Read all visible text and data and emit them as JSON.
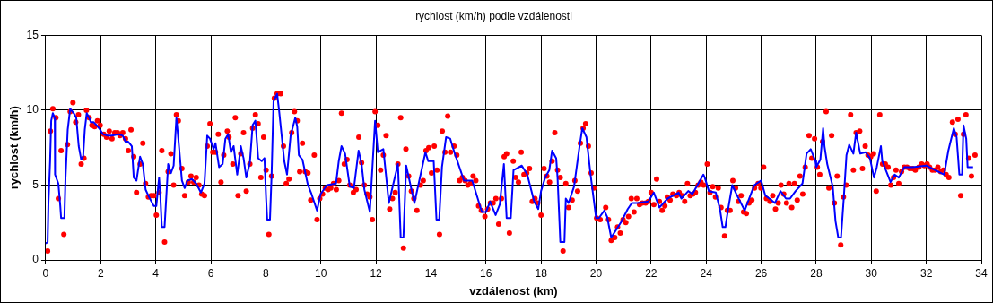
{
  "chart_data": {
    "type": "line",
    "title": "rychlost (km/h) podle vzdálenosti",
    "xlabel": "vzdálenost (km)",
    "ylabel": "rychlost (km/h)",
    "xlim": [
      0,
      34
    ],
    "xticks": [
      0,
      2,
      4,
      6,
      8,
      10,
      12,
      14,
      16,
      18,
      20,
      22,
      24,
      26,
      28,
      30,
      32,
      34
    ],
    "ylim": [
      0,
      15
    ],
    "yticks": [
      0,
      5,
      10,
      15
    ],
    "grid": true,
    "legend": false,
    "series": [
      {
        "type": "scatter",
        "marker": "circle",
        "color": "#ff0000",
        "x": [
          0.07,
          0.17,
          0.26,
          0.37,
          0.46,
          0.56,
          0.66,
          0.79,
          0.89,
          0.99,
          1.09,
          1.19,
          1.29,
          1.39,
          1.48,
          1.58,
          1.68,
          1.78,
          1.88,
          1.98,
          2.11,
          2.21,
          2.31,
          2.41,
          2.51,
          2.61,
          2.7,
          2.8,
          2.9,
          3.0,
          3.1,
          3.2,
          3.3,
          3.43,
          3.53,
          3.63,
          3.73,
          3.83,
          3.93,
          4.02,
          4.12,
          4.22,
          4.32,
          4.45,
          4.55,
          4.65,
          4.75,
          4.82,
          4.95,
          5.05,
          5.18,
          5.28,
          5.38,
          5.47,
          5.57,
          5.67,
          5.77,
          5.87,
          5.97,
          6.07,
          6.17,
          6.27,
          6.37,
          6.47,
          6.6,
          6.66,
          6.8,
          6.89,
          6.99,
          7.09,
          7.19,
          7.29,
          7.42,
          7.52,
          7.62,
          7.72,
          7.82,
          7.92,
          8.01,
          8.11,
          8.21,
          8.31,
          8.41,
          8.54,
          8.64,
          8.74,
          8.84,
          8.94,
          9.04,
          9.14,
          9.23,
          9.33,
          9.43,
          9.53,
          9.63,
          9.76,
          9.86,
          9.96,
          10.06,
          10.16,
          10.26,
          10.36,
          10.46,
          10.56,
          10.65,
          10.75,
          10.85,
          10.95,
          11.05,
          11.18,
          11.28,
          11.38,
          11.48,
          11.58,
          11.68,
          11.78,
          11.87,
          11.97,
          12.07,
          12.17,
          12.27,
          12.37,
          12.5,
          12.6,
          12.7,
          12.8,
          12.9,
          13.0,
          13.09,
          13.19,
          13.29,
          13.38,
          13.49,
          13.62,
          13.72,
          13.82,
          13.92,
          14.02,
          14.12,
          14.22,
          14.31,
          14.41,
          14.51,
          14.61,
          14.71,
          14.84,
          14.94,
          15.04,
          15.14,
          15.24,
          15.34,
          15.44,
          15.53,
          15.63,
          15.73,
          15.83,
          15.96,
          16.06,
          16.16,
          16.26,
          16.36,
          16.46,
          16.56,
          16.66,
          16.75,
          16.85,
          16.99,
          17.08,
          17.18,
          17.28,
          17.38,
          17.48,
          17.58,
          17.68,
          17.78,
          17.88,
          18.0,
          18.11,
          18.21,
          18.31,
          18.4,
          18.5,
          18.6,
          18.7,
          18.8,
          18.9,
          19.0,
          19.13,
          19.23,
          19.33,
          19.43,
          19.53,
          19.62,
          19.72,
          19.82,
          19.92,
          20.02,
          20.15,
          20.35,
          20.45,
          20.55,
          20.68,
          20.78,
          20.88,
          20.98,
          21.08,
          21.18,
          21.28,
          21.38,
          21.48,
          21.58,
          21.68,
          21.8,
          21.9,
          22.0,
          22.1,
          22.2,
          22.3,
          22.4,
          22.5,
          22.59,
          22.69,
          22.79,
          22.92,
          23.02,
          23.12,
          23.22,
          23.32,
          23.42,
          23.52,
          23.61,
          23.71,
          23.81,
          23.91,
          24.04,
          24.14,
          24.24,
          24.34,
          24.44,
          24.54,
          24.67,
          24.77,
          24.87,
          24.97,
          25.07,
          25.17,
          25.27,
          25.36,
          25.46,
          25.56,
          25.66,
          25.76,
          25.89,
          25.99,
          26.09,
          26.19,
          26.32,
          26.42,
          26.52,
          26.62,
          26.72,
          26.82,
          26.92,
          27.01,
          27.11,
          27.21,
          27.31,
          27.41,
          27.51,
          27.6,
          27.74,
          27.84,
          27.94,
          28.04,
          28.13,
          28.23,
          28.36,
          28.46,
          28.56,
          28.66,
          28.76,
          28.89,
          28.99,
          29.09,
          29.25,
          29.35,
          29.45,
          29.58,
          29.68,
          29.78,
          29.88,
          29.98,
          30.08,
          30.18,
          30.31,
          30.41,
          30.51,
          30.61,
          30.71,
          30.81,
          30.9,
          31.0,
          31.1,
          31.2,
          31.3,
          31.4,
          31.5,
          31.6,
          31.73,
          31.83,
          31.93,
          32.03,
          32.12,
          32.22,
          32.32,
          32.42,
          32.52,
          32.62,
          32.72,
          32.82,
          32.95,
          33.05,
          33.15,
          33.25,
          33.35,
          33.44,
          33.54,
          33.64,
          33.77
        ],
        "values": [
          0.6,
          8.6,
          10.1,
          9.5,
          4.1,
          7.3,
          1.7,
          7.7,
          9.9,
          10.5,
          9.2,
          9.7,
          6.4,
          6.8,
          10.0,
          9.5,
          9.0,
          8.9,
          9.3,
          9.0,
          8.4,
          8.2,
          8.6,
          8.1,
          8.5,
          8.5,
          8.3,
          8.5,
          8.1,
          7.3,
          8.7,
          6.9,
          4.5,
          6.4,
          7.8,
          5.1,
          4.2,
          4.3,
          4.3,
          3.0,
          4.5,
          7.3,
          1.2,
          5.9,
          7.1,
          5.0,
          9.7,
          9.3,
          6.1,
          4.3,
          5.2,
          5.6,
          5.2,
          5.5,
          5.0,
          4.4,
          4.3,
          7.6,
          9.1,
          7.2,
          7.2,
          8.4,
          5.2,
          7.0,
          8.6,
          8.2,
          6.4,
          9.5,
          4.3,
          7.1,
          8.5,
          4.6,
          6.4,
          8.8,
          9.7,
          9.1,
          5.5,
          8.2,
          6.0,
          1.7,
          5.6,
          10.8,
          11.1,
          11.1,
          7.6,
          5.1,
          5.4,
          8.5,
          9.9,
          9.3,
          5.9,
          7.8,
          5.9,
          5.8,
          4.0,
          7.0,
          2.7,
          4.1,
          4.4,
          4.8,
          4.7,
          4.8,
          5.1,
          4.7,
          5.3,
          9.8,
          6.4,
          6.7,
          5.0,
          4.5,
          4.7,
          8.2,
          6.5,
          5.0,
          4.4,
          4.2,
          2.7,
          9.9,
          9.0,
          6.0,
          7.0,
          8.3,
          3.4,
          4.1,
          4.5,
          6.4,
          9.5,
          0.8,
          7.4,
          5.6,
          4.6,
          4.1,
          3.3,
          5.0,
          5.3,
          7.3,
          7.5,
          5.8,
          7.6,
          6.0,
          1.7,
          8.6,
          7.2,
          9.6,
          7.2,
          7.6,
          7.0,
          5.3,
          5.5,
          5.3,
          5.0,
          5.1,
          5.6,
          5.3,
          3.6,
          3.3,
          2.9,
          3.4,
          3.8,
          3.8,
          4.1,
          2.4,
          4.1,
          6.9,
          7.1,
          1.8,
          6.6,
          5.5,
          5.2,
          7.2,
          5.7,
          5.8,
          6.1,
          3.9,
          4.1,
          3.8,
          3.0,
          6.1,
          5.6,
          5.2,
          6.6,
          8.5,
          6.0,
          5.5,
          0.6,
          5.1,
          3.5,
          4.0,
          5.3,
          4.6,
          7.8,
          8.8,
          9.1,
          7.6,
          5.8,
          4.8,
          2.8,
          2.7,
          3.5,
          2.7,
          1.3,
          1.5,
          2.2,
          1.8,
          2.7,
          2.5,
          2.9,
          4.1,
          3.2,
          4.1,
          3.7,
          3.8,
          3.8,
          3.9,
          4.5,
          3.7,
          5.4,
          3.9,
          3.3,
          3.6,
          4.2,
          4.0,
          4.4,
          4.3,
          4.5,
          4.3,
          3.9,
          5.1,
          4.3,
          4.4,
          4.5,
          5.0,
          5.2,
          5.0,
          6.4,
          4.5,
          4.9,
          4.2,
          4.8,
          3.5,
          1.6,
          3.3,
          3.3,
          5.3,
          4.8,
          3.9,
          4.3,
          3.2,
          3.1,
          3.8,
          4.0,
          4.8,
          5.1,
          4.8,
          6.2,
          4.1,
          3.9,
          4.3,
          3.4,
          3.8,
          5.0,
          4.4,
          3.8,
          5.1,
          3.5,
          5.1,
          4.0,
          5.6,
          4.4,
          6.2,
          8.3,
          6.8,
          8.1,
          6.2,
          5.7,
          7.9,
          9.9,
          4.8,
          8.3,
          3.8,
          5.6,
          1.0,
          4.2,
          5.0,
          9.7,
          6.0,
          8.5,
          8.6,
          6.1,
          7.6,
          7.0,
          6.9,
          7.1,
          4.6,
          9.7,
          6.4,
          6.4,
          6.2,
          5.0,
          5.5,
          6.0,
          5.1,
          5.9,
          6.2,
          6.2,
          6.1,
          6.1,
          6.0,
          6.2,
          6.4,
          6.3,
          6.4,
          6.2,
          6.0,
          6.0,
          6.2,
          5.9,
          6.0,
          5.7,
          5.5,
          9.2,
          8.4,
          9.4,
          4.3,
          8.4,
          9.7,
          6.8,
          5.6,
          7.0
        ]
      },
      {
        "marker": "none",
        "color": "#0000ff",
        "x": [
          0,
          0.07,
          0.1,
          0.16,
          0.2,
          0.26,
          0.33,
          0.34,
          0.46,
          0.53,
          0.56,
          0.68,
          0.72,
          0.8,
          0.89,
          1.02,
          1.11,
          1.2,
          1.29,
          1.36,
          1.42,
          1.49,
          1.58,
          1.64,
          1.74,
          1.85,
          1.98,
          2.08,
          2.24,
          2.41,
          2.64,
          2.8,
          2.9,
          3.0,
          3.13,
          3.2,
          3.3,
          3.43,
          3.53,
          3.63,
          3.73,
          3.93,
          4.02,
          4.12,
          4.16,
          4.22,
          4.32,
          4.45,
          4.55,
          4.65,
          4.75,
          4.82,
          4.95,
          5.05,
          5.15,
          5.31,
          5.47,
          5.64,
          5.77,
          5.87,
          5.97,
          6.1,
          6.17,
          6.3,
          6.43,
          6.53,
          6.63,
          6.73,
          6.83,
          6.96,
          7.09,
          7.19,
          7.29,
          7.42,
          7.52,
          7.62,
          7.72,
          7.85,
          7.95,
          8.01,
          8.05,
          8.15,
          8.21,
          8.28,
          8.41,
          8.48,
          8.67,
          8.77,
          8.9,
          9.07,
          9.14,
          9.2,
          9.33,
          9.53,
          9.66,
          9.86,
          9.99,
          10.22,
          10.55,
          10.65,
          10.75,
          10.88,
          11.05,
          11.2,
          11.37,
          11.48,
          11.58,
          11.78,
          11.97,
          12.07,
          12.27,
          12.47,
          12.8,
          12.9,
          13.0,
          13.1,
          13.4,
          13.8,
          13.9,
          14.1,
          14.2,
          14.3,
          14.4,
          14.55,
          14.7,
          14.85,
          15.2,
          15.5,
          15.85,
          16.0,
          16.15,
          16.35,
          16.5,
          16.65,
          16.75,
          16.9,
          17.0,
          17.3,
          17.5,
          17.75,
          17.9,
          18.0,
          18.15,
          18.3,
          18.4,
          18.55,
          18.6,
          18.7,
          18.85,
          18.9,
          19.0,
          19.2,
          19.4,
          19.5,
          19.65,
          19.8,
          20.0,
          20.1,
          20.3,
          20.4,
          20.55,
          20.9,
          21.15,
          21.3,
          21.5,
          21.9,
          22.1,
          22.3,
          22.6,
          23.0,
          23.1,
          23.35,
          23.5,
          23.9,
          23.95,
          24.1,
          24.35,
          24.5,
          24.6,
          24.7,
          24.8,
          24.95,
          25.1,
          25.4,
          25.75,
          26.0,
          26.15,
          26.3,
          26.5,
          26.7,
          26.9,
          27.05,
          27.25,
          27.5,
          27.65,
          27.8,
          27.97,
          28.0,
          28.15,
          28.25,
          28.3,
          28.4,
          28.6,
          28.7,
          28.8,
          28.9,
          29.0,
          29.1,
          29.2,
          29.35,
          29.45,
          29.6,
          29.8,
          29.95,
          30.1,
          30.2,
          30.35,
          30.4,
          30.7,
          30.85,
          31.0,
          31.2,
          31.5,
          32.0,
          32.65,
          32.8,
          33.0,
          33.1,
          33.2,
          33.3,
          33.35,
          33.45,
          33.5,
          33.7
        ],
        "values": [
          1.1,
          1.2,
          3.8,
          6.6,
          9.3,
          9.8,
          9.5,
          5.7,
          5.1,
          3.6,
          2.8,
          2.8,
          5.5,
          8.7,
          10.1,
          9.8,
          9.5,
          7.6,
          6.7,
          6.9,
          8.7,
          9.8,
          9.5,
          9.2,
          9.2,
          9.0,
          8.7,
          8.4,
          8.3,
          8.3,
          8.4,
          8.3,
          7.9,
          7.9,
          7.6,
          5.5,
          5.3,
          6.9,
          6.4,
          4.7,
          4.3,
          3.6,
          3.6,
          5.5,
          4.5,
          2.2,
          2.2,
          6.4,
          5.8,
          6.3,
          9.5,
          8.1,
          5.3,
          4.8,
          5.3,
          5.4,
          5.1,
          4.5,
          5.1,
          8.3,
          8.1,
          7.4,
          7.8,
          6.2,
          6.4,
          8.1,
          8.4,
          7.2,
          7.6,
          5.7,
          7.6,
          6.8,
          5.5,
          6.5,
          9.0,
          9.3,
          6.8,
          6.6,
          6.8,
          4.1,
          2.7,
          2.7,
          5.7,
          10.6,
          11.1,
          10.0,
          6.6,
          5.7,
          8.3,
          9.5,
          8.9,
          7.0,
          6.7,
          5.0,
          4.4,
          3.3,
          4.4,
          5.0,
          5.1,
          6.6,
          7.6,
          7.1,
          4.9,
          4.8,
          7.3,
          6.4,
          4.7,
          3.2,
          9.3,
          7.2,
          7.4,
          3.8,
          6.4,
          1.5,
          1.5,
          6.3,
          3.8,
          7.2,
          6.6,
          6.6,
          2.7,
          2.7,
          6.2,
          8.2,
          8.1,
          7.2,
          5.3,
          5.3,
          3.2,
          3.2,
          3.9,
          3.0,
          3.7,
          6.4,
          2.8,
          2.8,
          6.0,
          6.3,
          5.7,
          3.9,
          3.4,
          4.6,
          5.5,
          6.0,
          7.3,
          6.8,
          5.5,
          1.2,
          1.2,
          4.1,
          3.8,
          4.9,
          7.6,
          8.8,
          8.2,
          5.7,
          2.8,
          2.8,
          3.3,
          2.9,
          1.5,
          2.5,
          3.4,
          3.8,
          3.8,
          3.9,
          4.5,
          3.5,
          4.1,
          4.5,
          4.1,
          4.6,
          4.4,
          5.7,
          5.5,
          4.6,
          4.5,
          3.4,
          2.2,
          2.2,
          3.4,
          5.0,
          4.4,
          3.3,
          5.0,
          5.3,
          4.3,
          4.1,
          3.8,
          4.6,
          4.1,
          4.1,
          4.6,
          5.1,
          7.1,
          7.4,
          6.6,
          6.2,
          6.7,
          8.8,
          7.6,
          6.4,
          4.9,
          2.6,
          1.5,
          1.5,
          4.1,
          7.0,
          7.7,
          7.1,
          8.5,
          7.1,
          7.2,
          6.8,
          5.5,
          6.2,
          7.6,
          6.6,
          5.2,
          5.7,
          5.5,
          6.2,
          6.2,
          6.3,
          5.7,
          7.3,
          8.8,
          8.2,
          5.7,
          5.7,
          9.0,
          8.1,
          6.2,
          6.2
        ]
      }
    ]
  }
}
